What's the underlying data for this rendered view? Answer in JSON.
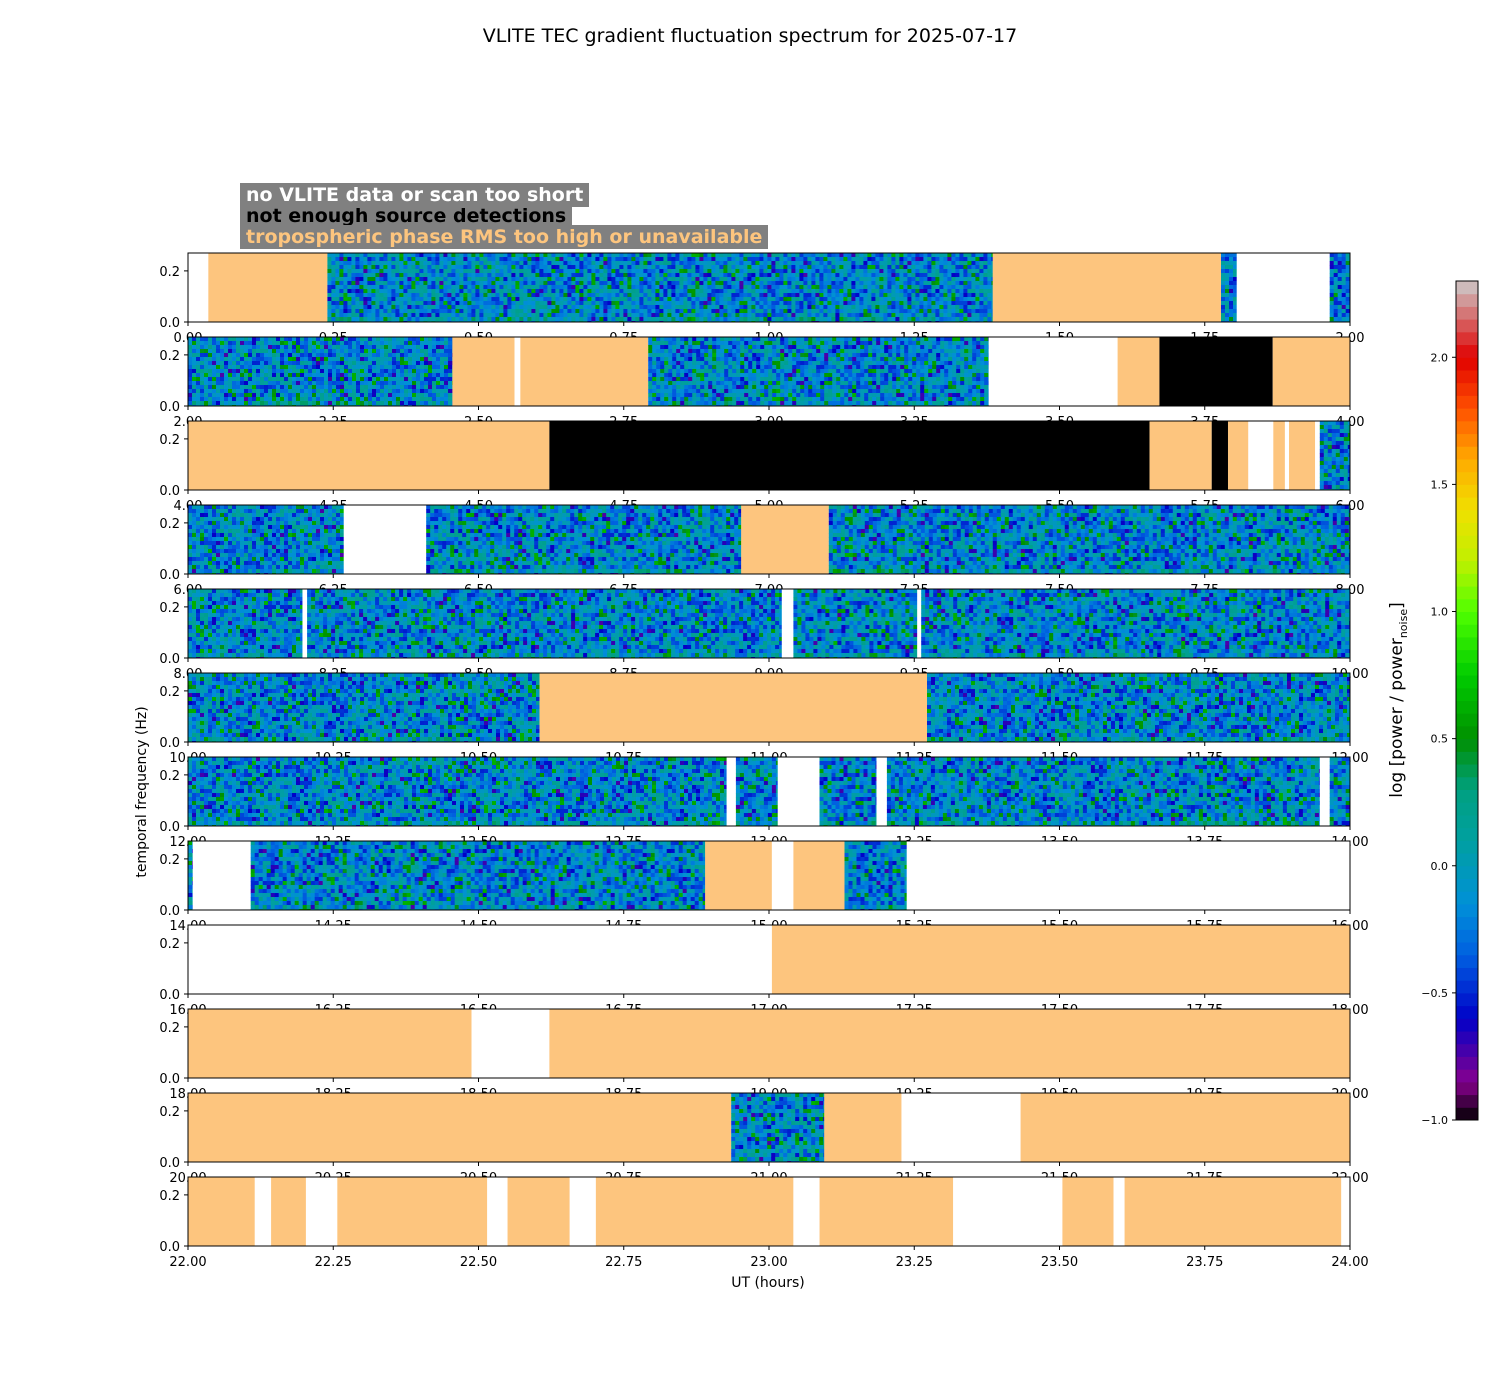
{
  "chart_data": {
    "type": "heatmap",
    "title": "VLITE TEC gradient fluctuation spectrum for 2025-07-17",
    "xlabel": "UT (hours)",
    "ylabel": "temporal frequency (Hz)",
    "colorbar_label": "log [power / power",
    "colorbar_label_sub": "noise",
    "colorbar_label_end": "]",
    "colorbar_ticks": [
      "−1.0",
      "−0.5",
      "0.0",
      "0.5",
      "1.0",
      "1.5",
      "2.0"
    ],
    "colorbar_tick_values": [
      -1.0,
      -0.5,
      0.0,
      0.5,
      1.0,
      1.5,
      2.0
    ],
    "colorbar_range": [
      -1.0,
      2.3
    ],
    "ylim": [
      0,
      0.27
    ],
    "y_ticks": [
      "0.0",
      "0.2"
    ],
    "y_tick_values": [
      0.0,
      0.2
    ],
    "category_colors": {
      "no_data": "#ffffff",
      "few_detections": "#000000",
      "tropo": "#fdc57e"
    },
    "legend": [
      {
        "label": "no VLITE data or scan too short",
        "color": "#ffffff"
      },
      {
        "label": "not enough source detections",
        "color": "#000000"
      },
      {
        "label": "tropospheric phase RMS too high or unavailable",
        "color": "#fdc57e"
      }
    ],
    "panels": [
      {
        "start": 0,
        "x_ticks": [
          "0.00",
          "0.25",
          "0.50",
          "0.75",
          "1.00",
          "1.25",
          "1.50",
          "1.75",
          "2.00"
        ],
        "segments": [
          [
            "no_data",
            0,
            0.035
          ],
          [
            "tropo",
            0.035,
            0.24
          ],
          [
            "spec",
            0.24,
            1.385
          ],
          [
            "tropo",
            1.385,
            1.778
          ],
          [
            "spec",
            1.778,
            1.805
          ],
          [
            "no_data",
            1.805,
            1.965
          ],
          [
            "spec",
            1.965,
            2.0
          ]
        ]
      },
      {
        "start": 2,
        "x_ticks": [
          "2.00",
          "2.25",
          "2.50",
          "2.75",
          "3.00",
          "3.25",
          "3.50",
          "3.75",
          "4.00"
        ],
        "segments": [
          [
            "spec",
            2.0,
            2.455
          ],
          [
            "tropo",
            2.455,
            2.562
          ],
          [
            "no_data",
            2.562,
            2.572
          ],
          [
            "tropo",
            2.572,
            2.792
          ],
          [
            "spec",
            2.792,
            3.378
          ],
          [
            "no_data",
            3.378,
            3.6
          ],
          [
            "tropo",
            3.6,
            3.672
          ],
          [
            "few_detections",
            3.672,
            3.867
          ],
          [
            "tropo",
            3.867,
            4.0
          ]
        ]
      },
      {
        "start": 4,
        "x_ticks": [
          "4.00",
          "4.25",
          "4.50",
          "4.75",
          "5.00",
          "5.25",
          "5.50",
          "5.75",
          "6.00"
        ],
        "segments": [
          [
            "tropo",
            4.0,
            4.622
          ],
          [
            "few_detections",
            4.622,
            5.655
          ],
          [
            "tropo",
            5.655,
            5.762
          ],
          [
            "few_detections",
            5.762,
            5.79
          ],
          [
            "tropo",
            5.79,
            5.825
          ],
          [
            "no_data",
            5.825,
            5.868
          ],
          [
            "tropo",
            5.868,
            5.888
          ],
          [
            "no_data",
            5.888,
            5.895
          ],
          [
            "tropo",
            5.895,
            5.94
          ],
          [
            "no_data",
            5.94,
            5.948
          ],
          [
            "spec",
            5.948,
            6.0
          ]
        ]
      },
      {
        "start": 6,
        "x_ticks": [
          "6.00",
          "6.25",
          "6.50",
          "6.75",
          "7.00",
          "7.25",
          "7.50",
          "7.75",
          "8.00"
        ],
        "segments": [
          [
            "spec",
            6.0,
            6.268
          ],
          [
            "no_data",
            6.268,
            6.41
          ],
          [
            "spec",
            6.41,
            6.952
          ],
          [
            "tropo",
            6.952,
            7.103
          ],
          [
            "spec",
            7.103,
            8.0
          ]
        ]
      },
      {
        "start": 8,
        "x_ticks": [
          "8.00",
          "8.25",
          "8.50",
          "8.75",
          "9.00",
          "9.25",
          "9.50",
          "9.75",
          "10.00"
        ],
        "segments": [
          [
            "spec",
            8.0,
            8.197
          ],
          [
            "no_data",
            8.197,
            8.205
          ],
          [
            "spec",
            8.205,
            9.022
          ],
          [
            "no_data",
            9.022,
            9.042
          ],
          [
            "spec",
            9.042,
            9.255
          ],
          [
            "no_data",
            9.255,
            9.262
          ],
          [
            "spec",
            9.262,
            10.0
          ]
        ]
      },
      {
        "start": 10,
        "x_ticks": [
          "10.00",
          "10.25",
          "10.50",
          "10.75",
          "11.00",
          "11.25",
          "11.50",
          "11.75",
          "12.00"
        ],
        "segments": [
          [
            "spec",
            10.0,
            10.605
          ],
          [
            "tropo",
            10.605,
            11.272
          ],
          [
            "spec",
            11.272,
            12.0
          ]
        ]
      },
      {
        "start": 12,
        "x_ticks": [
          "12.00",
          "12.25",
          "12.50",
          "12.75",
          "13.00",
          "13.25",
          "13.50",
          "13.75",
          "14.00"
        ],
        "segments": [
          [
            "spec",
            12.0,
            12.927
          ],
          [
            "no_data",
            12.927,
            12.943
          ],
          [
            "spec",
            12.943,
            13.015
          ],
          [
            "no_data",
            13.015,
            13.087
          ],
          [
            "spec",
            13.087,
            13.185
          ],
          [
            "no_data",
            13.185,
            13.203
          ],
          [
            "spec",
            13.203,
            13.948
          ],
          [
            "no_data",
            13.948,
            13.965
          ],
          [
            "spec",
            13.965,
            14.0
          ]
        ]
      },
      {
        "start": 14,
        "x_ticks": [
          "14.00",
          "14.25",
          "14.50",
          "14.75",
          "15.00",
          "15.25",
          "15.50",
          "15.75",
          "16.00"
        ],
        "segments": [
          [
            "spec",
            14.0,
            14.008
          ],
          [
            "no_data",
            14.008,
            14.108
          ],
          [
            "spec",
            14.108,
            14.89
          ],
          [
            "tropo",
            14.89,
            15.005
          ],
          [
            "no_data",
            15.005,
            15.042
          ],
          [
            "tropo",
            15.042,
            15.13
          ],
          [
            "spec",
            15.13,
            15.237
          ],
          [
            "no_data",
            15.237,
            16.0
          ]
        ]
      },
      {
        "start": 16,
        "x_ticks": [
          "16.00",
          "16.25",
          "16.50",
          "16.75",
          "17.00",
          "17.25",
          "17.50",
          "17.75",
          "18.00"
        ],
        "segments": [
          [
            "no_data",
            16.0,
            17.005
          ],
          [
            "tropo",
            17.005,
            18.0
          ]
        ]
      },
      {
        "start": 18,
        "x_ticks": [
          "18.00",
          "18.25",
          "18.50",
          "18.75",
          "19.00",
          "19.25",
          "19.50",
          "19.75",
          "20.00"
        ],
        "segments": [
          [
            "tropo",
            18.0,
            18.488
          ],
          [
            "no_data",
            18.488,
            18.622
          ],
          [
            "tropo",
            18.622,
            20.0
          ]
        ]
      },
      {
        "start": 20,
        "x_ticks": [
          "20.00",
          "20.25",
          "20.50",
          "20.75",
          "21.00",
          "21.25",
          "21.50",
          "21.75",
          "22.00"
        ],
        "segments": [
          [
            "tropo",
            20.0,
            20.935
          ],
          [
            "spec",
            20.935,
            21.095
          ],
          [
            "tropo",
            21.095,
            21.228
          ],
          [
            "no_data",
            21.228,
            21.433
          ],
          [
            "tropo",
            21.433,
            22.0
          ]
        ]
      },
      {
        "start": 22,
        "x_ticks": [
          "22.00",
          "22.25",
          "22.50",
          "22.75",
          "23.00",
          "23.25",
          "23.50",
          "23.75",
          "24.00"
        ],
        "segments": [
          [
            "tropo",
            22.0,
            22.115
          ],
          [
            "no_data",
            22.115,
            22.143
          ],
          [
            "tropo",
            22.143,
            22.203
          ],
          [
            "no_data",
            22.203,
            22.257
          ],
          [
            "tropo",
            22.257,
            22.515
          ],
          [
            "no_data",
            22.515,
            22.55
          ],
          [
            "tropo",
            22.55,
            22.657
          ],
          [
            "no_data",
            22.657,
            22.702
          ],
          [
            "tropo",
            22.702,
            23.042
          ],
          [
            "no_data",
            23.042,
            23.087
          ],
          [
            "tropo",
            23.087,
            23.317
          ],
          [
            "no_data",
            23.317,
            23.505
          ],
          [
            "tropo",
            23.505,
            23.593
          ],
          [
            "no_data",
            23.593,
            23.612
          ],
          [
            "tropo",
            23.612,
            23.985
          ],
          [
            "no_data",
            23.985,
            24.0
          ]
        ]
      }
    ]
  }
}
